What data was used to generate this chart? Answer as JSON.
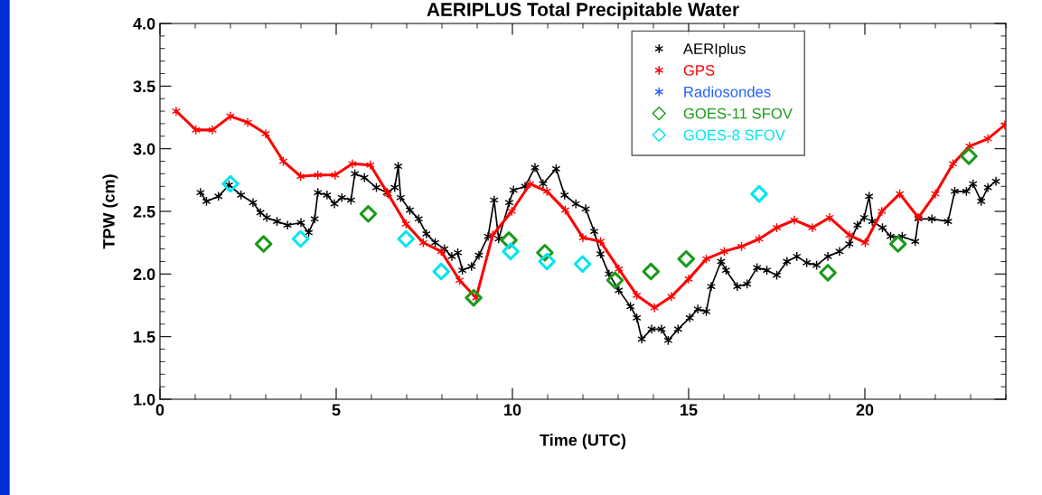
{
  "chart_data": {
    "type": "line",
    "title": "AERIPLUS Total Precipitable Water",
    "xlabel": "Time (UTC)",
    "ylabel": "TPW (cm)",
    "xlim": [
      0,
      24
    ],
    "xticks": [
      0,
      5,
      10,
      15,
      20
    ],
    "ylim": [
      1.0,
      4.0
    ],
    "yticks": [
      {
        "value": 1.0,
        "label": "1.0"
      },
      {
        "value": 1.5,
        "label": "1.5"
      },
      {
        "value": 2.0,
        "label": "2.0"
      },
      {
        "value": 2.5,
        "label": "2.5"
      },
      {
        "value": 3.0,
        "label": "3.0"
      },
      {
        "value": 3.5,
        "label": "3.5"
      },
      {
        "value": 4.0,
        "label": "4.0"
      }
    ],
    "legend": "top",
    "grid": false,
    "series": [
      {
        "name": "AERIplus",
        "color": "#000000",
        "marker": "cross",
        "x": [
          1.15,
          1.32,
          1.66,
          1.96,
          2.3,
          2.64,
          2.85,
          3.03,
          3.32,
          3.62,
          4.0,
          4.22,
          4.39,
          4.48,
          4.74,
          4.95,
          5.16,
          5.42,
          5.53,
          5.8,
          6.14,
          6.44,
          6.66,
          6.76,
          6.83,
          7.09,
          7.34,
          7.56,
          7.81,
          8.07,
          8.28,
          8.45,
          8.58,
          8.84,
          9.05,
          9.31,
          9.48,
          9.61,
          9.91,
          10.03,
          10.36,
          10.64,
          10.87,
          11.24,
          11.48,
          11.8,
          12.08,
          12.32,
          12.5,
          12.74,
          13.02,
          13.35,
          13.53,
          13.67,
          13.95,
          14.23,
          14.42,
          14.7,
          15.03,
          15.26,
          15.5,
          15.64,
          15.92,
          16.06,
          16.38,
          16.66,
          16.94,
          17.22,
          17.5,
          17.79,
          18.07,
          18.35,
          18.63,
          18.95,
          19.28,
          19.56,
          19.79,
          19.98,
          20.12,
          20.21,
          20.5,
          20.73,
          21.06,
          21.43,
          21.52,
          21.9,
          22.36,
          22.55,
          22.88,
          23.07,
          23.3,
          23.49,
          23.72
        ],
        "values": [
          2.65,
          2.58,
          2.62,
          2.71,
          2.63,
          2.57,
          2.49,
          2.45,
          2.42,
          2.39,
          2.41,
          2.33,
          2.44,
          2.65,
          2.63,
          2.56,
          2.61,
          2.59,
          2.8,
          2.77,
          2.69,
          2.65,
          2.69,
          2.86,
          2.61,
          2.51,
          2.44,
          2.32,
          2.25,
          2.2,
          2.14,
          2.17,
          2.03,
          2.06,
          2.15,
          2.3,
          2.59,
          2.28,
          2.57,
          2.67,
          2.7,
          2.85,
          2.72,
          2.84,
          2.63,
          2.56,
          2.52,
          2.34,
          2.16,
          2.0,
          1.87,
          1.74,
          1.65,
          1.48,
          1.56,
          1.56,
          1.47,
          1.56,
          1.65,
          1.72,
          1.7,
          1.9,
          2.1,
          2.03,
          1.9,
          1.92,
          2.05,
          2.03,
          1.99,
          2.1,
          2.14,
          2.09,
          2.07,
          2.14,
          2.18,
          2.24,
          2.39,
          2.45,
          2.62,
          2.42,
          2.37,
          2.3,
          2.3,
          2.26,
          2.44,
          2.44,
          2.42,
          2.66,
          2.66,
          2.72,
          2.58,
          2.69,
          2.74
        ]
      },
      {
        "name": "GPS",
        "color": "#ff0000",
        "marker": "cross",
        "x": [
          0.46,
          1.02,
          1.49,
          2.0,
          2.49,
          3.0,
          3.5,
          3.99,
          4.48,
          4.97,
          5.46,
          5.97,
          6.47,
          6.98,
          7.47,
          7.98,
          8.5,
          8.97,
          9.44,
          9.98,
          10.5,
          10.98,
          11.5,
          12.0,
          12.5,
          13.02,
          13.53,
          14.03,
          14.51,
          15.0,
          15.5,
          16.01,
          16.5,
          17.0,
          17.5,
          18.0,
          18.51,
          19.0,
          19.56,
          20.01,
          20.48,
          20.99,
          21.52,
          22.0,
          22.5,
          22.97,
          23.49,
          23.97
        ],
        "values": [
          3.3,
          3.15,
          3.15,
          3.26,
          3.21,
          3.12,
          2.9,
          2.78,
          2.79,
          2.79,
          2.88,
          2.87,
          2.64,
          2.4,
          2.25,
          2.18,
          1.95,
          1.81,
          2.31,
          2.5,
          2.72,
          2.66,
          2.51,
          2.29,
          2.26,
          2.04,
          1.83,
          1.73,
          1.82,
          1.96,
          2.12,
          2.18,
          2.22,
          2.28,
          2.37,
          2.43,
          2.37,
          2.45,
          2.31,
          2.25,
          2.5,
          2.64,
          2.45,
          2.64,
          2.88,
          3.02,
          3.08,
          3.19
        ]
      },
      {
        "name": "Radiosondes",
        "type": "scatter",
        "color": "#2060ff",
        "marker": "cross"
      },
      {
        "name": "GOES-11 SFOV",
        "type": "scatter",
        "color": "#1a9a1a",
        "marker": "diamond",
        "x": [
          2.94,
          5.91,
          8.9,
          9.9,
          10.92,
          12.91,
          13.93,
          14.93,
          18.95,
          20.94,
          22.95
        ],
        "values": [
          2.24,
          2.48,
          1.81,
          2.27,
          2.17,
          1.95,
          2.02,
          2.12,
          2.01,
          2.24,
          2.94
        ]
      },
      {
        "name": "GOES-8 SFOV",
        "type": "scatter",
        "color": "#00e5ee",
        "marker": "diamond",
        "x": [
          2.0,
          3.99,
          6.98,
          7.98,
          9.95,
          10.98,
          11.99,
          17.0
        ],
        "values": [
          2.72,
          2.28,
          2.28,
          2.02,
          2.18,
          2.1,
          2.08,
          2.64
        ]
      }
    ]
  }
}
